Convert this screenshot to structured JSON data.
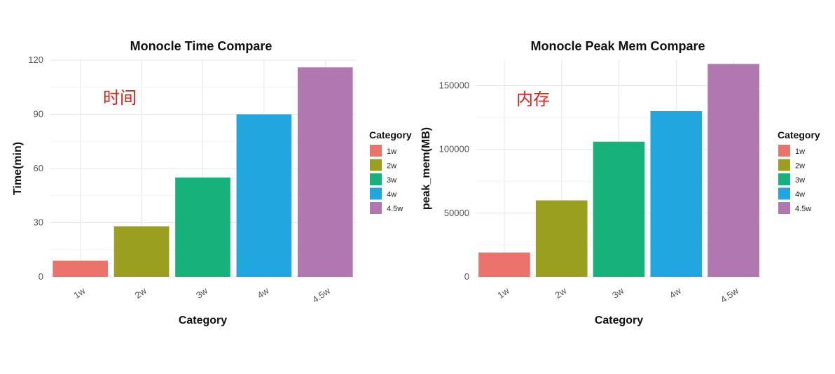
{
  "chart_data": [
    {
      "type": "bar",
      "title": "Monocle Time Compare",
      "xlabel": "Category",
      "ylabel": "Time(min)",
      "annotation": "时间",
      "categories": [
        "1w",
        "2w",
        "3w",
        "4w",
        "4.5w"
      ],
      "values": [
        9,
        28,
        55,
        90,
        116
      ],
      "colors": [
        "#EB736B",
        "#9B9F20",
        "#17B27B",
        "#22A6DF",
        "#B077B0"
      ],
      "ylim": [
        0,
        120
      ],
      "yticks": [
        0,
        30,
        60,
        90,
        120
      ],
      "ytick_labels": [
        "0",
        "30",
        "60",
        "90",
        "120"
      ],
      "grid": true,
      "legend": {
        "title": "Category",
        "position": "right",
        "labels": [
          "1w",
          "2w",
          "3w",
          "4w",
          "4.5w"
        ]
      }
    },
    {
      "type": "bar",
      "title": "Monocle Peak Mem Compare",
      "xlabel": "Category",
      "ylabel": "peak_mem(MB)",
      "annotation": "内存",
      "categories": [
        "1w",
        "2w",
        "3w",
        "4w",
        "4.5w"
      ],
      "values": [
        19000,
        60000,
        106000,
        130000,
        167000
      ],
      "colors": [
        "#EB736B",
        "#9B9F20",
        "#17B27B",
        "#22A6DF",
        "#B077B0"
      ],
      "ylim": [
        0,
        170000
      ],
      "yticks": [
        0,
        50000,
        100000,
        150000
      ],
      "ytick_labels": [
        "0",
        "50000",
        "100000",
        "150000"
      ],
      "grid": true,
      "legend": {
        "title": "Category",
        "position": "right",
        "labels": [
          "1w",
          "2w",
          "3w",
          "4w",
          "4.5w"
        ]
      }
    }
  ]
}
